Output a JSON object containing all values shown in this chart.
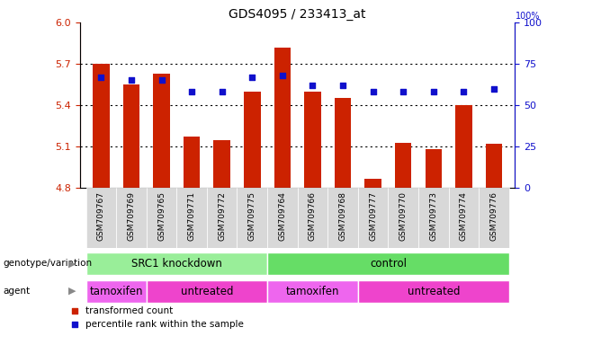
{
  "title": "GDS4095 / 233413_at",
  "samples": [
    "GSM709767",
    "GSM709769",
    "GSM709765",
    "GSM709771",
    "GSM709772",
    "GSM709775",
    "GSM709764",
    "GSM709766",
    "GSM709768",
    "GSM709777",
    "GSM709770",
    "GSM709773",
    "GSM709774",
    "GSM709776"
  ],
  "bar_values": [
    5.7,
    5.55,
    5.63,
    5.17,
    5.15,
    5.5,
    5.82,
    5.5,
    5.45,
    4.87,
    5.13,
    5.08,
    5.4,
    5.12
  ],
  "percentile_values": [
    67,
    65,
    65,
    58,
    58,
    67,
    68,
    62,
    62,
    58,
    58,
    58,
    58,
    60
  ],
  "ylim_left": [
    4.8,
    6.0
  ],
  "ylim_right": [
    0,
    100
  ],
  "yticks_left": [
    4.8,
    5.1,
    5.4,
    5.7,
    6.0
  ],
  "yticks_right": [
    0,
    25,
    50,
    75,
    100
  ],
  "grid_lines": [
    5.1,
    5.4,
    5.7
  ],
  "bar_color": "#CC2200",
  "dot_color": "#1010CC",
  "bar_bottom": 4.8,
  "genotype_groups": [
    {
      "label": "SRC1 knockdown",
      "start": 0,
      "end": 6,
      "color": "#99EE99"
    },
    {
      "label": "control",
      "start": 6,
      "end": 14,
      "color": "#66DD66"
    }
  ],
  "agent_groups": [
    {
      "label": "tamoxifen",
      "start": 0,
      "end": 2,
      "color": "#EE66EE"
    },
    {
      "label": "untreated",
      "start": 2,
      "end": 6,
      "color": "#EE44CC"
    },
    {
      "label": "tamoxifen",
      "start": 6,
      "end": 9,
      "color": "#EE66EE"
    },
    {
      "label": "untreated",
      "start": 9,
      "end": 14,
      "color": "#EE44CC"
    }
  ],
  "legend_items": [
    {
      "label": "transformed count",
      "color": "#CC2200"
    },
    {
      "label": "percentile rank within the sample",
      "color": "#1010CC"
    }
  ],
  "left_label_color": "#CC2200",
  "right_label_color": "#1010CC",
  "right_top_label": "100%",
  "genotype_label": "genotype/variation",
  "agent_label": "agent",
  "fig_width": 6.58,
  "fig_height": 3.84,
  "dpi": 100
}
